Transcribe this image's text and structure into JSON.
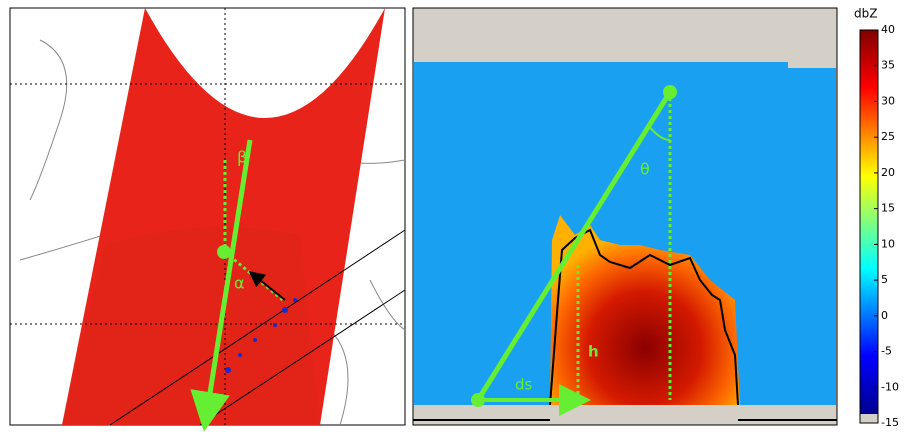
{
  "chart_data": {
    "type": "radar-figure",
    "annotations": {
      "beta": "β",
      "alpha": "α",
      "theta": "θ",
      "ds": "ds",
      "h": "h"
    },
    "colorbar": {
      "label": "dbZ",
      "lim": [
        -15,
        40
      ],
      "ticks": [
        40,
        35,
        30,
        25,
        20,
        15,
        10,
        5,
        0,
        -5,
        -10,
        -15
      ]
    }
  }
}
